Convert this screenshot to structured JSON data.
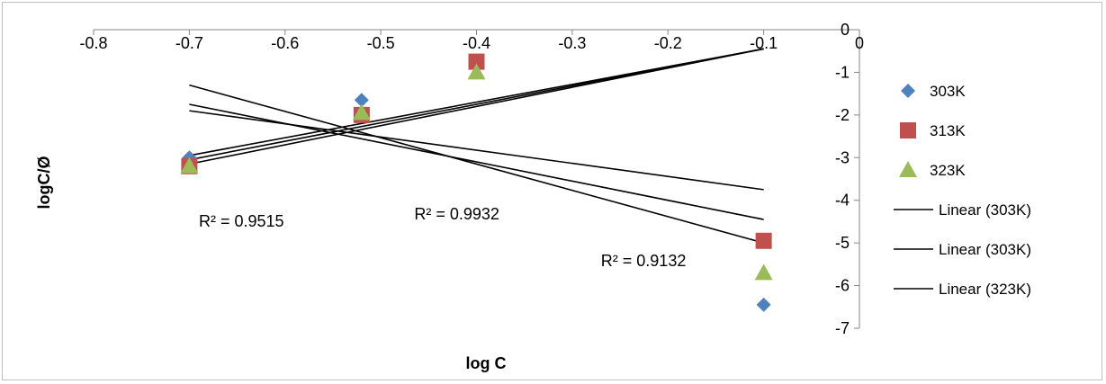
{
  "chart_data": {
    "type": "scatter",
    "title": "",
    "xlabel": "log C",
    "ylabel": "logC/Ø",
    "xlim": [
      -0.8,
      0
    ],
    "ylim": [
      -7,
      0
    ],
    "x_ticks": [
      "-0.8",
      "-0.7",
      "-0.6",
      "-0.5",
      "-0.4",
      "-0.3",
      "-0.2",
      "-0.1",
      "0"
    ],
    "y_ticks": [
      "0",
      "-1",
      "-2",
      "-3",
      "-4",
      "-5",
      "-6",
      "-7"
    ],
    "grid": false,
    "legend_position": "right",
    "series": [
      {
        "name": "303K",
        "marker": "diamond",
        "color": "#4f81bd",
        "x": [
          -0.7,
          -0.52,
          -0.4,
          -0.1
        ],
        "y": [
          -3.0,
          -1.65,
          -0.8,
          -6.45
        ]
      },
      {
        "name": "313K",
        "marker": "square",
        "color": "#c0504d",
        "x": [
          -0.7,
          -0.52,
          -0.4,
          -0.1
        ],
        "y": [
          -3.2,
          -2.0,
          -0.75,
          -4.95
        ]
      },
      {
        "name": "323K",
        "marker": "triangle",
        "color": "#9bbb59",
        "x": [
          -0.7,
          -0.52,
          -0.4,
          -0.1
        ],
        "y": [
          -3.2,
          -1.95,
          -1.0,
          -5.7
        ]
      }
    ],
    "trendlines": [
      {
        "name": "Linear (303K)",
        "color": "#000000",
        "points": [
          [
            -0.7,
            -1.3
          ],
          [
            -0.1,
            -5.0
          ]
        ]
      },
      {
        "name": "Linear (303K)",
        "color": "#000000",
        "points": [
          [
            -0.7,
            -1.75
          ],
          [
            -0.1,
            -4.45
          ]
        ]
      },
      {
        "name": "Linear (323K)",
        "color": "#000000",
        "points": [
          [
            -0.7,
            -1.9
          ],
          [
            -0.1,
            -3.75
          ]
        ]
      },
      {
        "name": "",
        "color": "#000000",
        "points": [
          [
            -0.7,
            -2.95
          ],
          [
            -0.1,
            -0.45
          ]
        ]
      },
      {
        "name": "",
        "color": "#000000",
        "points": [
          [
            -0.7,
            -3.05
          ],
          [
            -0.1,
            -0.45
          ]
        ]
      },
      {
        "name": "",
        "color": "#000000",
        "points": [
          [
            -0.7,
            -3.15
          ],
          [
            -0.1,
            -0.45
          ]
        ]
      }
    ],
    "annotations": [
      {
        "text": "R² = 0.9515",
        "x": -0.69,
        "y": -4.62
      },
      {
        "text": "R² = 0.9932",
        "x": -0.465,
        "y": -4.45
      },
      {
        "text": "R² = 0.9132",
        "x": -0.27,
        "y": -5.55
      }
    ]
  }
}
